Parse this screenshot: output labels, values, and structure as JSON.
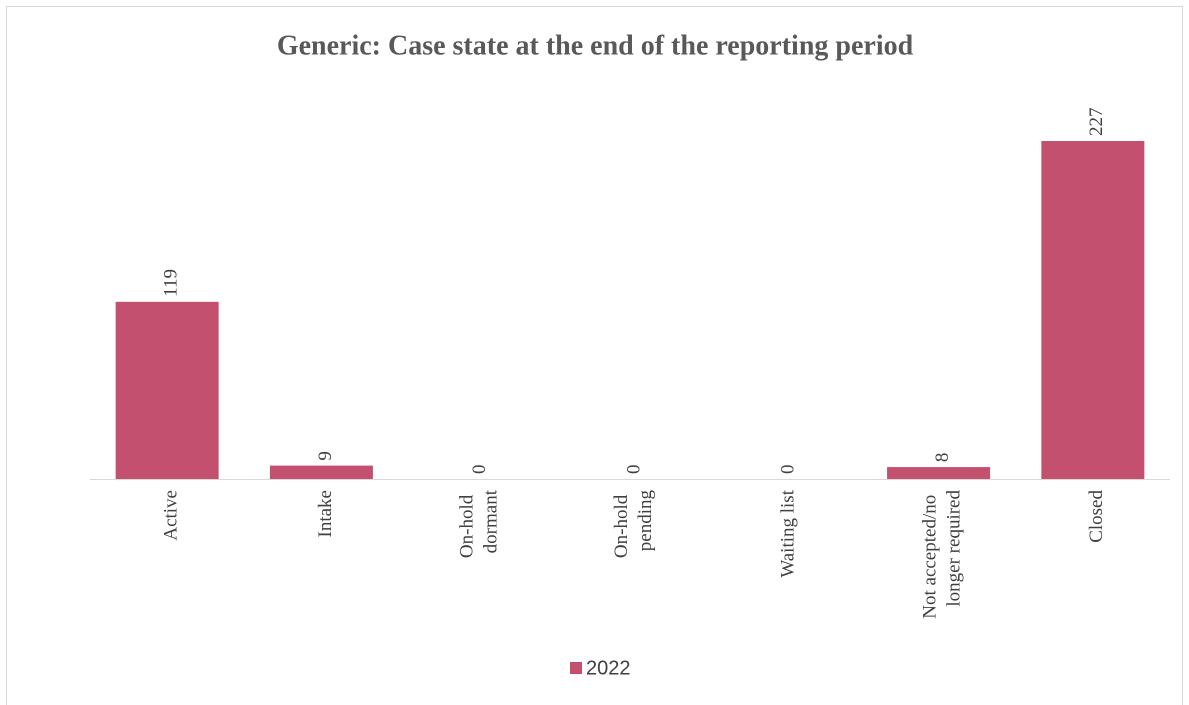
{
  "chart_data": {
    "type": "bar",
    "title": "Generic: Case state at the end of the reporting period",
    "categories": [
      "Active",
      "Intake",
      "On-hold dormant",
      "On-hold pending",
      "Waiting list",
      "Not accepted/no longer required",
      "Closed"
    ],
    "series": [
      {
        "name": "2022",
        "color": "#c4506f",
        "values": [
          119,
          9,
          0,
          0,
          0,
          8,
          227
        ]
      }
    ],
    "legend": "bottom"
  }
}
